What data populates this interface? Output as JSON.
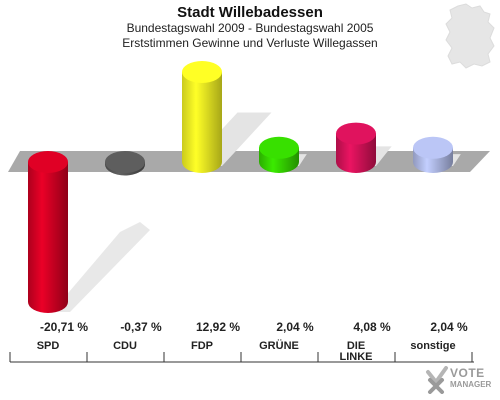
{
  "header": {
    "title": "Stadt Willebadessen",
    "subtitle1": "Bundestagswahl 2009 - Bundestagswahl 2005",
    "subtitle2": "Erststimmen Gewinne und Verluste Willegassen"
  },
  "logo": {
    "line1": "VOTE",
    "line2": "MANAGER",
    "icon": "checkmark-x-icon"
  },
  "map_icon": "germany-map-icon",
  "chart_data": {
    "type": "bar",
    "title": "Stadt Willebadessen",
    "categories": [
      "SPD",
      "CDU",
      "FDP",
      "GRÜNE",
      "DIE LINKE",
      "sonstige"
    ],
    "category_lines": [
      [
        "SPD"
      ],
      [
        "CDU"
      ],
      [
        "FDP"
      ],
      [
        "GRÜNE"
      ],
      [
        "DIE",
        "LINKE"
      ],
      [
        "sonstige"
      ]
    ],
    "values": [
      -20.71,
      -0.37,
      12.92,
      2.04,
      4.08,
      2.04
    ],
    "labels": [
      "-20,71 %",
      "-0,37 %",
      "12,92 %",
      "2,04 %",
      "4,08 %",
      "2,04 %"
    ],
    "colors": [
      "#cc0022",
      "#555555",
      "#eeee22",
      "#33cc00",
      "#cc1155",
      "#aab4e0"
    ],
    "baseline": 0,
    "ylim": [
      -20.71,
      12.92
    ],
    "grid": false,
    "legend": "none"
  }
}
